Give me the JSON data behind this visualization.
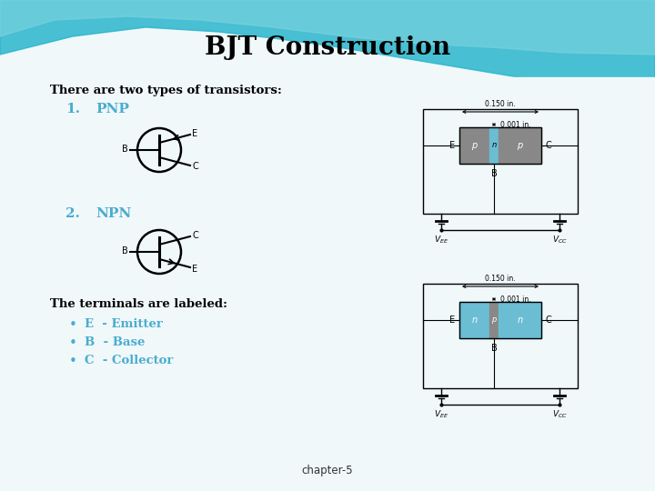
{
  "title": "BJT Construction",
  "title_fontsize": 20,
  "title_color": "#000000",
  "body_text": "There are two types of transistors:",
  "item1_num": "1.",
  "item1_label": "PNP",
  "item2_num": "2.",
  "item2_label": "NPN",
  "terminals_title": "The terminals are labeled:",
  "bullet1": "E  - Emitter",
  "bullet2": "B  - Base",
  "bullet3": "C  - Collector",
  "footer": "chapter-5",
  "cyan_color": "#4aaccf",
  "black_color": "#000000",
  "p_color": "#888888",
  "n_color": "#6bbdd4",
  "slide_bg": "#f0f8fa",
  "wave1_color": "#3bbdd4",
  "wave2_color": "#88d4e0"
}
